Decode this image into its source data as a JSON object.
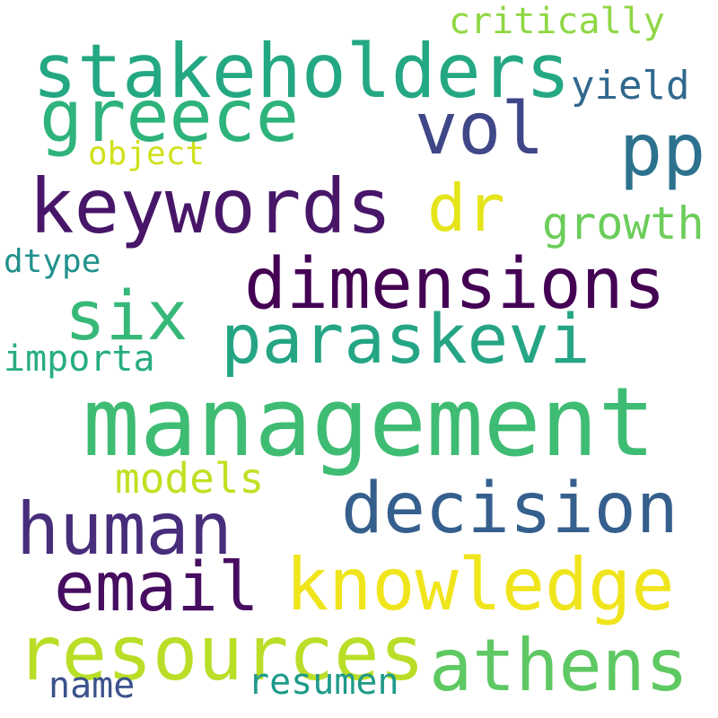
{
  "words": [
    {
      "id": "management",
      "text": "management",
      "color": "#3fbc73"
    },
    {
      "id": "stakeholders",
      "text": "stakeholders",
      "color": "#23a883"
    },
    {
      "id": "greece",
      "text": "greece",
      "color": "#2db37b"
    },
    {
      "id": "vol",
      "text": "vol",
      "color": "#3f4788"
    },
    {
      "id": "pp",
      "text": "pp",
      "color": "#2c728e"
    },
    {
      "id": "critically",
      "text": "critically",
      "color": "#8fd744"
    },
    {
      "id": "yield",
      "text": "yield",
      "color": "#31688e"
    },
    {
      "id": "object",
      "text": "object",
      "color": "#d0e11c"
    },
    {
      "id": "keywords",
      "text": "keywords",
      "color": "#481668"
    },
    {
      "id": "dr",
      "text": "dr",
      "color": "#e5e419"
    },
    {
      "id": "growth",
      "text": "growth",
      "color": "#6ccd5a"
    },
    {
      "id": "dimensions",
      "text": "dimensions",
      "color": "#440154"
    },
    {
      "id": "dtype",
      "text": "dtype",
      "color": "#21918c"
    },
    {
      "id": "six",
      "text": "six",
      "color": "#37b878"
    },
    {
      "id": "paraskevi",
      "text": "paraskevi",
      "color": "#25a584"
    },
    {
      "id": "importa",
      "text": "importa",
      "color": "#27ad81"
    },
    {
      "id": "models",
      "text": "models",
      "color": "#c2df23"
    },
    {
      "id": "decision",
      "text": "decision",
      "color": "#355f8d"
    },
    {
      "id": "human",
      "text": "human",
      "color": "#472d7b"
    },
    {
      "id": "email",
      "text": "email",
      "color": "#470d60"
    },
    {
      "id": "knowledge",
      "text": "knowledge",
      "color": "#f0e51c"
    },
    {
      "id": "resources",
      "text": "resources",
      "color": "#bade28"
    },
    {
      "id": "athens",
      "text": "athens",
      "color": "#5ec962"
    },
    {
      "id": "name",
      "text": "name",
      "color": "#3b528b"
    },
    {
      "id": "resumen",
      "text": "resumen",
      "color": "#1f9a8a"
    }
  ]
}
